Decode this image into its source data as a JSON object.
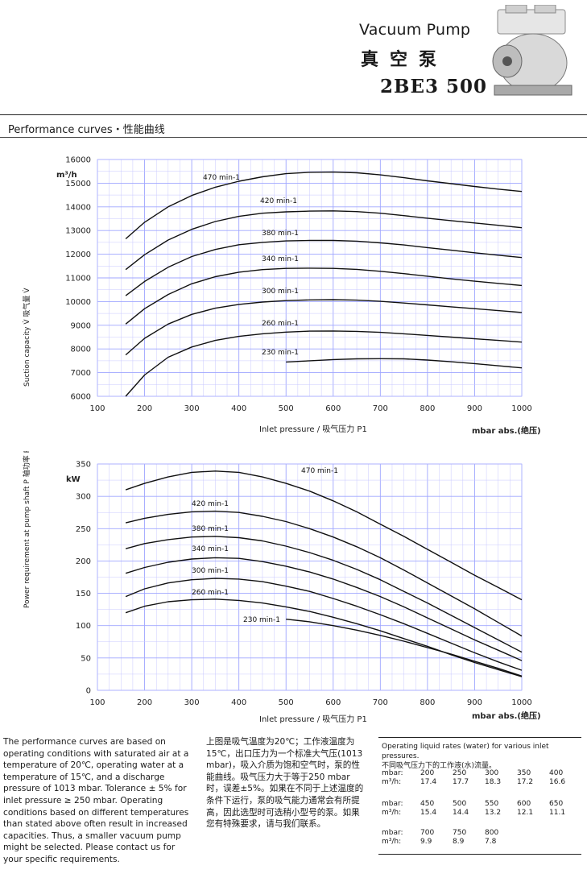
{
  "header": {
    "title_en": "Vacuum Pump",
    "title_cn": "真空泵",
    "model": "2BE3 500"
  },
  "section_title": "Performance curves・性能曲线",
  "colors": {
    "curve": "#111111",
    "grid_minor": "#c8c8ff",
    "grid_major": "#9fa6ff",
    "rule": "#222222"
  },
  "chart_data": [
    {
      "type": "line",
      "ylabel": "Suction capacity V̇  吸气量 V̇",
      "yunit": "m³/h",
      "xlabel": "Inlet pressure / 吸气压力  P1",
      "xunit": "mbar  abs.(绝压)",
      "xlim": [
        100,
        1000
      ],
      "ylim": [
        6000,
        16000
      ],
      "xticks": [
        "100",
        "200",
        "300",
        "400",
        "500",
        "600",
        "700",
        "800",
        "900",
        "1000"
      ],
      "yticks": [
        "6000",
        "7000",
        "8000",
        "9000",
        "10000",
        "11000",
        "12000",
        "13000",
        "14000",
        "15000",
        "16000"
      ],
      "grid": true,
      "series": [
        {
          "name": "470 min-1",
          "x": [
            160,
            200,
            250,
            300,
            350,
            400,
            450,
            500,
            550,
            600,
            650,
            700,
            750,
            800,
            850,
            900,
            950,
            1000
          ],
          "y": [
            12650,
            13350,
            14000,
            14480,
            14830,
            15080,
            15270,
            15400,
            15460,
            15470,
            15440,
            15350,
            15230,
            15100,
            14980,
            14860,
            14750,
            14650
          ]
        },
        {
          "name": "420 min-1",
          "x": [
            160,
            200,
            250,
            300,
            350,
            400,
            450,
            500,
            550,
            600,
            650,
            700,
            750,
            800,
            850,
            900,
            950,
            1000
          ],
          "y": [
            11350,
            11980,
            12600,
            13050,
            13380,
            13600,
            13730,
            13790,
            13820,
            13830,
            13800,
            13730,
            13630,
            13520,
            13420,
            13320,
            13220,
            13120
          ]
        },
        {
          "name": "380 min-1",
          "x": [
            160,
            200,
            250,
            300,
            350,
            400,
            450,
            500,
            550,
            600,
            650,
            700,
            750,
            800,
            850,
            900,
            950,
            1000
          ],
          "y": [
            10250,
            10850,
            11450,
            11900,
            12200,
            12400,
            12500,
            12560,
            12580,
            12580,
            12550,
            12480,
            12390,
            12280,
            12170,
            12060,
            11960,
            11860
          ]
        },
        {
          "name": "340 min-1",
          "x": [
            160,
            200,
            250,
            300,
            350,
            400,
            450,
            500,
            550,
            600,
            650,
            700,
            750,
            800,
            850,
            900,
            950,
            1000
          ],
          "y": [
            9050,
            9700,
            10300,
            10750,
            11050,
            11240,
            11350,
            11400,
            11410,
            11400,
            11360,
            11280,
            11180,
            11070,
            10960,
            10860,
            10770,
            10680
          ]
        },
        {
          "name": "300 min-1",
          "x": [
            160,
            200,
            250,
            300,
            350,
            400,
            450,
            500,
            550,
            600,
            650,
            700,
            750,
            800,
            850,
            900,
            950,
            1000
          ],
          "y": [
            7750,
            8450,
            9050,
            9460,
            9720,
            9880,
            9980,
            10040,
            10070,
            10080,
            10060,
            10010,
            9940,
            9860,
            9780,
            9700,
            9620,
            9540
          ]
        },
        {
          "name": "260 min-1",
          "x": [
            160,
            200,
            250,
            300,
            350,
            400,
            450,
            500,
            550,
            600,
            650,
            700,
            750,
            800,
            850,
            900,
            950,
            1000
          ],
          "y": [
            6000,
            6900,
            7650,
            8080,
            8360,
            8530,
            8640,
            8710,
            8750,
            8760,
            8740,
            8700,
            8640,
            8570,
            8500,
            8430,
            8360,
            8290
          ]
        },
        {
          "name": "230 min-1",
          "x": [
            500,
            550,
            600,
            650,
            700,
            750,
            800,
            850,
            900,
            950,
            1000
          ],
          "y": [
            7450,
            7500,
            7550,
            7580,
            7590,
            7580,
            7530,
            7460,
            7380,
            7290,
            7200
          ]
        }
      ]
    },
    {
      "type": "line",
      "ylabel": "Power requirement at pump shaft  P  轴功率  P",
      "yunit": "kW",
      "xlabel": "Inlet pressure / 吸气压力  P1",
      "xunit": "mbar  abs.(绝压)",
      "xlim": [
        100,
        1000
      ],
      "ylim": [
        0,
        350
      ],
      "xticks": [
        "100",
        "200",
        "300",
        "400",
        "500",
        "600",
        "700",
        "800",
        "900",
        "1000"
      ],
      "yticks": [
        "0",
        "50",
        "100",
        "150",
        "200",
        "250",
        "300",
        "350"
      ],
      "grid": true,
      "series": [
        {
          "name": "470 min-1",
          "x": [
            160,
            200,
            250,
            300,
            350,
            400,
            450,
            500,
            550,
            600,
            650,
            700,
            750,
            800,
            850,
            900,
            950,
            1000
          ],
          "y": [
            310,
            320,
            330,
            337,
            339,
            337,
            330,
            320,
            308,
            293,
            276,
            257,
            238,
            218,
            198,
            178,
            159,
            140
          ]
        },
        {
          "name": "420 min-1",
          "x": [
            160,
            200,
            250,
            300,
            350,
            400,
            450,
            500,
            550,
            600,
            650,
            700,
            750,
            800,
            850,
            900,
            950,
            1000
          ],
          "y": [
            259,
            266,
            272,
            276,
            277,
            275,
            269,
            261,
            250,
            237,
            222,
            205,
            186,
            166,
            146,
            126,
            105,
            84
          ]
        },
        {
          "name": "380 min-1",
          "x": [
            160,
            200,
            250,
            300,
            350,
            400,
            450,
            500,
            550,
            600,
            650,
            700,
            750,
            800,
            850,
            900,
            950,
            1000
          ],
          "y": [
            219,
            227,
            233,
            237,
            238,
            236,
            231,
            223,
            213,
            201,
            187,
            171,
            153,
            135,
            116,
            97,
            78,
            59
          ]
        },
        {
          "name": "340 min-1",
          "x": [
            160,
            200,
            250,
            300,
            350,
            400,
            450,
            500,
            550,
            600,
            650,
            700,
            750,
            800,
            850,
            900,
            950,
            1000
          ],
          "y": [
            181,
            190,
            198,
            203,
            205,
            204,
            199,
            192,
            183,
            172,
            159,
            145,
            129,
            112,
            95,
            78,
            62,
            46
          ]
        },
        {
          "name": "300 min-1",
          "x": [
            160,
            200,
            250,
            300,
            350,
            400,
            450,
            500,
            550,
            600,
            650,
            700,
            750,
            800,
            850,
            900,
            950,
            1000
          ],
          "y": [
            145,
            157,
            166,
            171,
            173,
            172,
            168,
            161,
            153,
            142,
            130,
            117,
            103,
            88,
            73,
            58,
            44,
            31
          ]
        },
        {
          "name": "260 min-1",
          "x": [
            160,
            200,
            250,
            300,
            350,
            400,
            450,
            500,
            550,
            600,
            650,
            700,
            750,
            800,
            850,
            900,
            950,
            1000
          ],
          "y": [
            120,
            130,
            137,
            140,
            141,
            139,
            135,
            129,
            122,
            113,
            103,
            92,
            80,
            68,
            55,
            43,
            32,
            21
          ]
        },
        {
          "name": "230 min-1",
          "x": [
            500,
            550,
            600,
            650,
            700,
            750,
            800,
            850,
            900,
            950,
            1000
          ],
          "y": [
            110,
            106,
            100,
            93,
            85,
            76,
            66,
            56,
            45,
            34,
            22
          ]
        }
      ]
    }
  ],
  "notes_en": "The performance curves are based on operating conditions with saturated air at a temperature of 20℃, operating water at a temperature of 15℃, and a discharge pressure of 1013 mbar. Tolerance ± 5% for inlet pressure ≥ 250 mbar. Operating conditions based on different temperatures than stated above often result in increased capacities. Thus, a smaller vacuum pump might be selected. Please contact us for your specific requirements.",
  "notes_cn": "上图是吸气温度为20℃；工作液温度为15℃，出口压力为一个标准大气压(1013 mbar)，吸入介质为饱和空气时，泵的性能曲线。吸气压力大于等于250 mbar时，误差±5%。如果在不同于上述温度的条件下运行，泵的吸气能力通常会有所提高，因此选型时可选稍小型号的泵。如果您有特殊要求，请与我们联系。",
  "water_table": {
    "caption_en": "Operating liquid rates (water) for various inlet pressures.",
    "caption_cn": "不同吸气压力下的工作液(水)流量。",
    "label_mbar": "mbar:",
    "label_flow": "m³/h:",
    "rows": [
      {
        "mbar": [
          "200",
          "250",
          "300",
          "350",
          "400"
        ],
        "flow": [
          "17.4",
          "17.7",
          "18.3",
          "17.2",
          "16.6"
        ]
      },
      {
        "mbar": [
          "450",
          "500",
          "550",
          "600",
          "650"
        ],
        "flow": [
          "15.4",
          "14.4",
          "13.2",
          "12.1",
          "11.1"
        ]
      },
      {
        "mbar": [
          "700",
          "750",
          "800"
        ],
        "flow": [
          "9.9",
          "8.9",
          "7.8"
        ]
      }
    ]
  }
}
